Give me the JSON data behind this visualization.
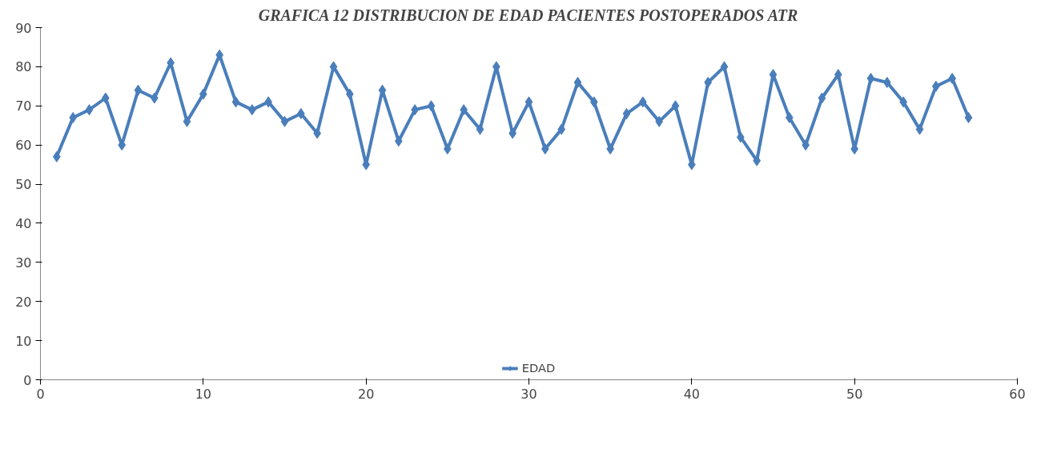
{
  "chart_data": {
    "type": "line",
    "title": "GRAFICA 12 DISTRIBUCION DE EDAD PACIENTES POSTOPERADOS ATR",
    "x": [
      1,
      2,
      3,
      4,
      5,
      6,
      7,
      8,
      9,
      10,
      11,
      12,
      13,
      14,
      15,
      16,
      17,
      18,
      19,
      20,
      21,
      22,
      23,
      24,
      25,
      26,
      27,
      28,
      29,
      30,
      31,
      32,
      33,
      34,
      35,
      36,
      37,
      38,
      39,
      40,
      41,
      42,
      43,
      44,
      45,
      46,
      47,
      48,
      49,
      50,
      51,
      52,
      53,
      54,
      55,
      56,
      57
    ],
    "series": [
      {
        "name": "EDAD",
        "color": "#4a7ebb",
        "values": [
          57,
          67,
          69,
          72,
          60,
          74,
          72,
          81,
          66,
          73,
          83,
          71,
          69,
          71,
          66,
          68,
          63,
          80,
          73,
          55,
          74,
          61,
          69,
          70,
          59,
          69,
          64,
          80,
          63,
          71,
          59,
          64,
          76,
          71,
          59,
          68,
          71,
          66,
          70,
          55,
          76,
          80,
          62,
          56,
          78,
          67,
          60,
          72,
          78,
          59,
          77,
          76,
          71,
          64,
          75,
          77,
          67
        ]
      }
    ],
    "xlim": [
      0,
      60
    ],
    "xticks": [
      0,
      10,
      20,
      30,
      40,
      50,
      60
    ],
    "ylim": [
      0,
      90
    ],
    "yticks": [
      0,
      10,
      20,
      30,
      40,
      50,
      60,
      70,
      80,
      90
    ],
    "grid": false,
    "legend": "bottom",
    "marker": "diamond",
    "line_style": "solid"
  }
}
